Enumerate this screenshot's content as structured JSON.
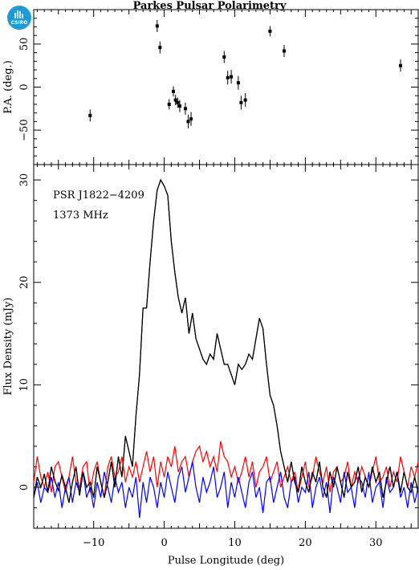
{
  "title": "Parkes Pulsar Polarimetry",
  "logo": {
    "text": "CSIRO",
    "color": "#1e9bd7"
  },
  "chart_data": [
    {
      "type": "scatter",
      "name": "position-angle",
      "ylabel": "P.A. (deg.)",
      "xlim": [
        -18.5,
        36
      ],
      "ylim": [
        -90,
        90
      ],
      "yticks": [
        -50,
        0,
        50
      ],
      "xticks": [
        -10,
        0,
        10,
        20,
        30
      ],
      "points": [
        {
          "x": -10.5,
          "y": -33,
          "err": 7
        },
        {
          "x": -1.0,
          "y": 71,
          "err": 7
        },
        {
          "x": -0.6,
          "y": 46,
          "err": 7
        },
        {
          "x": 0.7,
          "y": -20,
          "err": 6
        },
        {
          "x": 1.3,
          "y": -5,
          "err": 6
        },
        {
          "x": 1.6,
          "y": -15,
          "err": 6
        },
        {
          "x": 1.9,
          "y": -18,
          "err": 6
        },
        {
          "x": 2.2,
          "y": -22,
          "err": 7
        },
        {
          "x": 3.0,
          "y": -25,
          "err": 7
        },
        {
          "x": 3.4,
          "y": -40,
          "err": 8
        },
        {
          "x": 3.8,
          "y": -37,
          "err": 8
        },
        {
          "x": 8.5,
          "y": 35,
          "err": 7
        },
        {
          "x": 9.0,
          "y": 11,
          "err": 8
        },
        {
          "x": 9.5,
          "y": 12,
          "err": 8
        },
        {
          "x": 10.5,
          "y": 5,
          "err": 8
        },
        {
          "x": 10.9,
          "y": -18,
          "err": 8
        },
        {
          "x": 11.5,
          "y": -15,
          "err": 8
        },
        {
          "x": 15.0,
          "y": 65,
          "err": 6
        },
        {
          "x": 17.0,
          "y": 42,
          "err": 7
        },
        {
          "x": 33.5,
          "y": 25,
          "err": 7
        }
      ]
    },
    {
      "type": "line",
      "name": "flux-profile",
      "xlabel": "Pulse Longitude (deg)",
      "ylabel": "Flux Density (mJy)",
      "xlim": [
        -18.5,
        36
      ],
      "ylim": [
        -4,
        31.5
      ],
      "yticks": [
        0,
        10,
        20,
        30
      ],
      "xticks": [
        -10,
        0,
        10,
        20,
        30
      ],
      "annotations": [
        "PSR J1822−4209",
        "1373 MHz"
      ],
      "series": [
        {
          "color": "#000000",
          "x": [
            -18.5,
            -18.0,
            -17.5,
            -17.0,
            -16.5,
            -16.0,
            -15.5,
            -15.0,
            -14.5,
            -14.0,
            -13.5,
            -13.0,
            -12.5,
            -12.0,
            -11.5,
            -11.0,
            -10.5,
            -10.0,
            -9.5,
            -9.0,
            -8.5,
            -8.0,
            -7.5,
            -7.0,
            -6.5,
            -6.0,
            -5.5,
            -5.0,
            -4.5,
            -4.0,
            -3.5,
            -3.0,
            -2.5,
            -2.0,
            -1.5,
            -1.0,
            -0.5,
            0.0,
            0.5,
            1.0,
            1.5,
            2.0,
            2.5,
            3.0,
            3.5,
            4.0,
            4.5,
            5.0,
            5.5,
            6.0,
            6.5,
            7.0,
            7.5,
            8.0,
            8.5,
            9.0,
            9.5,
            10.0,
            10.5,
            11.0,
            11.5,
            12.0,
            12.5,
            13.0,
            13.5,
            14.0,
            14.5,
            15.0,
            15.5,
            16.0,
            16.5,
            17.0,
            17.5,
            18.0,
            18.5,
            19.0,
            19.5,
            20.0,
            20.5,
            21.0,
            21.5,
            22.0,
            22.5,
            23.0,
            23.5,
            24.0,
            24.5,
            25.0,
            25.5,
            26.0,
            26.5,
            27.0,
            27.5,
            28.0,
            28.5,
            29.0,
            29.5,
            30.0,
            30.5,
            31.0,
            31.5,
            32.0,
            32.5,
            33.0,
            33.5,
            34.0,
            34.5,
            35.0,
            35.5,
            36.0
          ],
          "y": [
            -1.0,
            1.0,
            0.0,
            1.3,
            -0.5,
            2.0,
            0.6,
            -0.3,
            1.2,
            0.0,
            -1.5,
            0.5,
            2.0,
            -0.8,
            1.5,
            0.0,
            0.5,
            -1.0,
            2.0,
            0.5,
            -1.0,
            0.5,
            2.5,
            0.0,
            3.0,
            1.0,
            5.0,
            3.5,
            2.0,
            7.0,
            11.0,
            17.5,
            17.5,
            22.0,
            26.0,
            29.0,
            30.0,
            29.4,
            28.5,
            24.0,
            21.0,
            18.5,
            17.0,
            18.5,
            15.0,
            17.0,
            14.5,
            13.5,
            12.5,
            12.0,
            13.0,
            12.5,
            15.0,
            13.5,
            12.0,
            12.0,
            11.0,
            10.0,
            12.0,
            11.5,
            12.0,
            13.0,
            12.5,
            14.5,
            16.5,
            15.5,
            12.0,
            9.0,
            8.0,
            6.0,
            3.5,
            2.0,
            0.5,
            2.5,
            0.5,
            -0.5,
            2.0,
            0.5,
            -0.5,
            1.5,
            0.5,
            2.5,
            0.0,
            -1.0,
            1.5,
            0.0,
            2.0,
            0.5,
            -1.0,
            1.5,
            0.0,
            0.5,
            2.0,
            -0.5,
            1.0,
            0.0,
            2.0,
            0.5,
            1.5,
            -1.0,
            0.5,
            2.0,
            0.0,
            1.5,
            -0.5,
            1.5,
            0.0,
            -0.5,
            1.0,
            -0.5
          ]
        },
        {
          "color": "#ff0000",
          "x": [
            -18.5,
            -18.0,
            -17.5,
            -17.0,
            -16.5,
            -16.0,
            -15.5,
            -15.0,
            -14.5,
            -14.0,
            -13.5,
            -13.0,
            -12.5,
            -12.0,
            -11.5,
            -11.0,
            -10.5,
            -10.0,
            -9.5,
            -9.0,
            -8.5,
            -8.0,
            -7.5,
            -7.0,
            -6.5,
            -6.0,
            -5.5,
            -5.0,
            -4.5,
            -4.0,
            -3.5,
            -3.0,
            -2.5,
            -2.0,
            -1.5,
            -1.0,
            -0.5,
            0.0,
            0.5,
            1.0,
            1.5,
            2.0,
            2.5,
            3.0,
            3.5,
            4.0,
            4.5,
            5.0,
            5.5,
            6.0,
            6.5,
            7.0,
            7.5,
            8.0,
            8.5,
            9.0,
            9.5,
            10.0,
            10.5,
            11.0,
            11.5,
            12.0,
            12.5,
            13.0,
            13.5,
            14.0,
            14.5,
            15.0,
            15.5,
            16.0,
            16.5,
            17.0,
            17.5,
            18.0,
            18.5,
            19.0,
            19.5,
            20.0,
            20.5,
            21.0,
            21.5,
            22.0,
            22.5,
            23.0,
            23.5,
            24.0,
            24.5,
            25.0,
            25.5,
            26.0,
            26.5,
            27.0,
            27.5,
            28.0,
            28.5,
            29.0,
            29.5,
            30.0,
            30.5,
            31.0,
            31.5,
            32.0,
            32.5,
            33.0,
            33.5,
            34.0,
            34.5,
            35.0,
            35.5,
            36.0
          ],
          "y": [
            0.5,
            3.0,
            1.0,
            0.0,
            1.5,
            -0.5,
            2.0,
            2.5,
            1.0,
            -0.5,
            1.0,
            3.0,
            0.5,
            0.0,
            2.0,
            2.5,
            -0.5,
            1.5,
            2.5,
            0.5,
            -1.0,
            2.0,
            3.0,
            1.0,
            1.5,
            3.0,
            0.5,
            2.0,
            1.0,
            2.5,
            0.5,
            2.0,
            3.5,
            1.5,
            3.0,
            0.0,
            2.5,
            1.0,
            3.0,
            2.0,
            4.0,
            1.5,
            2.5,
            3.0,
            1.0,
            2.5,
            3.5,
            4.0,
            2.5,
            3.5,
            2.0,
            3.0,
            1.5,
            4.5,
            3.0,
            2.5,
            1.0,
            2.0,
            0.5,
            1.5,
            3.0,
            1.0,
            2.5,
            0.0,
            1.5,
            2.0,
            3.0,
            0.5,
            1.5,
            2.5,
            0.0,
            1.0,
            2.0,
            0.5,
            1.5,
            -0.5,
            1.0,
            2.5,
            0.0,
            1.0,
            3.0,
            1.5,
            0.5,
            2.0,
            -0.5,
            1.5,
            2.0,
            0.5,
            1.0,
            2.5,
            0.0,
            1.5,
            0.5,
            2.0,
            1.0,
            0.0,
            1.5,
            3.0,
            0.5,
            1.0,
            2.0,
            0.0,
            1.5,
            0.5,
            3.0,
            1.5,
            0.0,
            2.0,
            1.0,
            2.5
          ]
        },
        {
          "color": "#0000ff",
          "x": [
            -18.5,
            -18.0,
            -17.5,
            -17.0,
            -16.5,
            -16.0,
            -15.5,
            -15.0,
            -14.5,
            -14.0,
            -13.5,
            -13.0,
            -12.5,
            -12.0,
            -11.5,
            -11.0,
            -10.5,
            -10.0,
            -9.5,
            -9.0,
            -8.5,
            -8.0,
            -7.5,
            -7.0,
            -6.5,
            -6.0,
            -5.5,
            -5.0,
            -4.5,
            -4.0,
            -3.5,
            -3.0,
            -2.5,
            -2.0,
            -1.5,
            -1.0,
            -0.5,
            0.0,
            0.5,
            1.0,
            1.5,
            2.0,
            2.5,
            3.0,
            3.5,
            4.0,
            4.5,
            5.0,
            5.5,
            6.0,
            6.5,
            7.0,
            7.5,
            8.0,
            8.5,
            9.0,
            9.5,
            10.0,
            10.5,
            11.0,
            11.5,
            12.0,
            12.5,
            13.0,
            13.5,
            14.0,
            14.5,
            15.0,
            15.5,
            16.0,
            16.5,
            17.0,
            17.5,
            18.0,
            18.5,
            19.0,
            19.5,
            20.0,
            20.5,
            21.0,
            21.5,
            22.0,
            22.5,
            23.0,
            23.5,
            24.0,
            24.5,
            25.0,
            25.5,
            26.0,
            26.5,
            27.0,
            27.5,
            28.0,
            28.5,
            29.0,
            29.5,
            30.0,
            30.5,
            31.0,
            31.5,
            32.0,
            32.5,
            33.0,
            33.5,
            34.0,
            34.5,
            35.0,
            35.5,
            36.0
          ],
          "y": [
            -1.0,
            0.5,
            -1.5,
            0.0,
            -0.5,
            1.0,
            -1.0,
            0.5,
            -2.0,
            0.0,
            1.0,
            -1.5,
            0.5,
            -0.5,
            1.5,
            -1.0,
            0.0,
            -2.0,
            0.5,
            -1.0,
            1.5,
            0.0,
            -1.5,
            1.0,
            -0.5,
            0.5,
            -2.0,
            0.0,
            -1.0,
            1.0,
            -3.0,
            0.5,
            -1.5,
            1.0,
            0.0,
            -2.0,
            0.5,
            -1.0,
            1.5,
            0.0,
            -1.5,
            1.0,
            2.0,
            -0.5,
            1.0,
            2.5,
            0.0,
            -1.5,
            1.0,
            -0.5,
            0.5,
            2.0,
            -1.0,
            0.0,
            1.5,
            -2.0,
            0.5,
            -1.0,
            1.0,
            -0.5,
            -2.0,
            0.5,
            1.5,
            -1.0,
            0.0,
            -2.5,
            0.5,
            1.0,
            -1.5,
            0.0,
            1.5,
            -1.0,
            -2.0,
            0.5,
            1.0,
            -1.5,
            0.0,
            -0.5,
            1.5,
            -2.0,
            0.0,
            1.0,
            -1.0,
            0.5,
            -2.5,
            1.0,
            0.0,
            -1.5,
            1.5,
            -0.5,
            0.0,
            -2.0,
            1.0,
            0.5,
            -1.0,
            1.5,
            -1.5,
            0.0,
            0.5,
            -2.0,
            1.0,
            -0.5,
            0.0,
            1.5,
            -1.0,
            0.0,
            -2.0,
            0.5,
            -1.5,
            0.0
          ]
        }
      ]
    }
  ]
}
